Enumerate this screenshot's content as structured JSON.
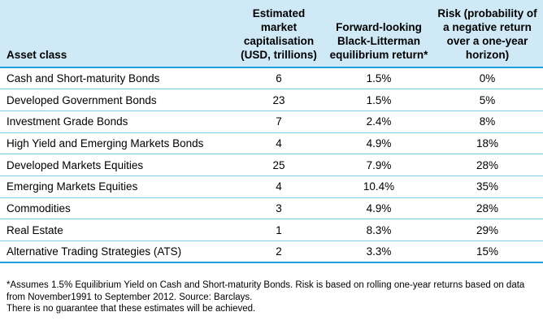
{
  "table": {
    "headers": {
      "asset_class": "Asset class",
      "market_cap": "Estimated market capitalisation (USD, trillions)",
      "return": "Forward-looking Black-Litterman equilibrium return*",
      "risk": "Risk (probability of a negative return over a one-year horizon)"
    },
    "rows": [
      {
        "asset": "Cash and Short-maturity Bonds",
        "cap": "6",
        "ret": "1.5%",
        "risk": "0%"
      },
      {
        "asset": "Developed Government Bonds",
        "cap": "23",
        "ret": "1.5%",
        "risk": "5%"
      },
      {
        "asset": "Investment Grade Bonds",
        "cap": "7",
        "ret": "2.4%",
        "risk": "8%"
      },
      {
        "asset": "High Yield and Emerging Markets Bonds",
        "cap": "4",
        "ret": "4.9%",
        "risk": "18%"
      },
      {
        "asset": "Developed Markets Equities",
        "cap": "25",
        "ret": "7.9%",
        "risk": "28%"
      },
      {
        "asset": "Emerging Markets Equities",
        "cap": "4",
        "ret": "10.4%",
        "risk": "35%"
      },
      {
        "asset": "Commodities",
        "cap": "3",
        "ret": "4.9%",
        "risk": "28%"
      },
      {
        "asset": "Real Estate",
        "cap": "1",
        "ret": "8.3%",
        "risk": "29%"
      },
      {
        "asset": "Alternative Trading Strategies (ATS)",
        "cap": "2",
        "ret": "3.3%",
        "risk": "15%"
      }
    ]
  },
  "notes": {
    "footnote": "*Assumes 1.5% Equilibrium Yield on Cash and Short-maturity Bonds. Risk is based on rolling one-year returns based on data from November1991 to September 2012. Source: Barclays.",
    "disclaimer": "There is no guarantee that these estimates will be achieved."
  },
  "colors": {
    "header_bg": "#cfe9f6",
    "rule_strong": "#1aa0de",
    "rule_light": "#7ecbea"
  }
}
